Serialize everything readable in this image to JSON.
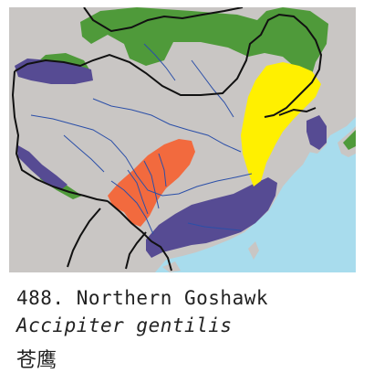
{
  "caption": {
    "number_and_name": "488. Northern Goshawk",
    "scientific_name": "Accipiter gentilis",
    "chinese_name": "苍鹰"
  },
  "map": {
    "colors": {
      "sea": "#a8dced",
      "land": "#c9c6c4",
      "range_green": "#4f9a3a",
      "range_purple": "#564b93",
      "range_yellow": "#fff000",
      "range_orange": "#f26a3e",
      "border": "#111111",
      "river": "#2b4fa8"
    }
  }
}
